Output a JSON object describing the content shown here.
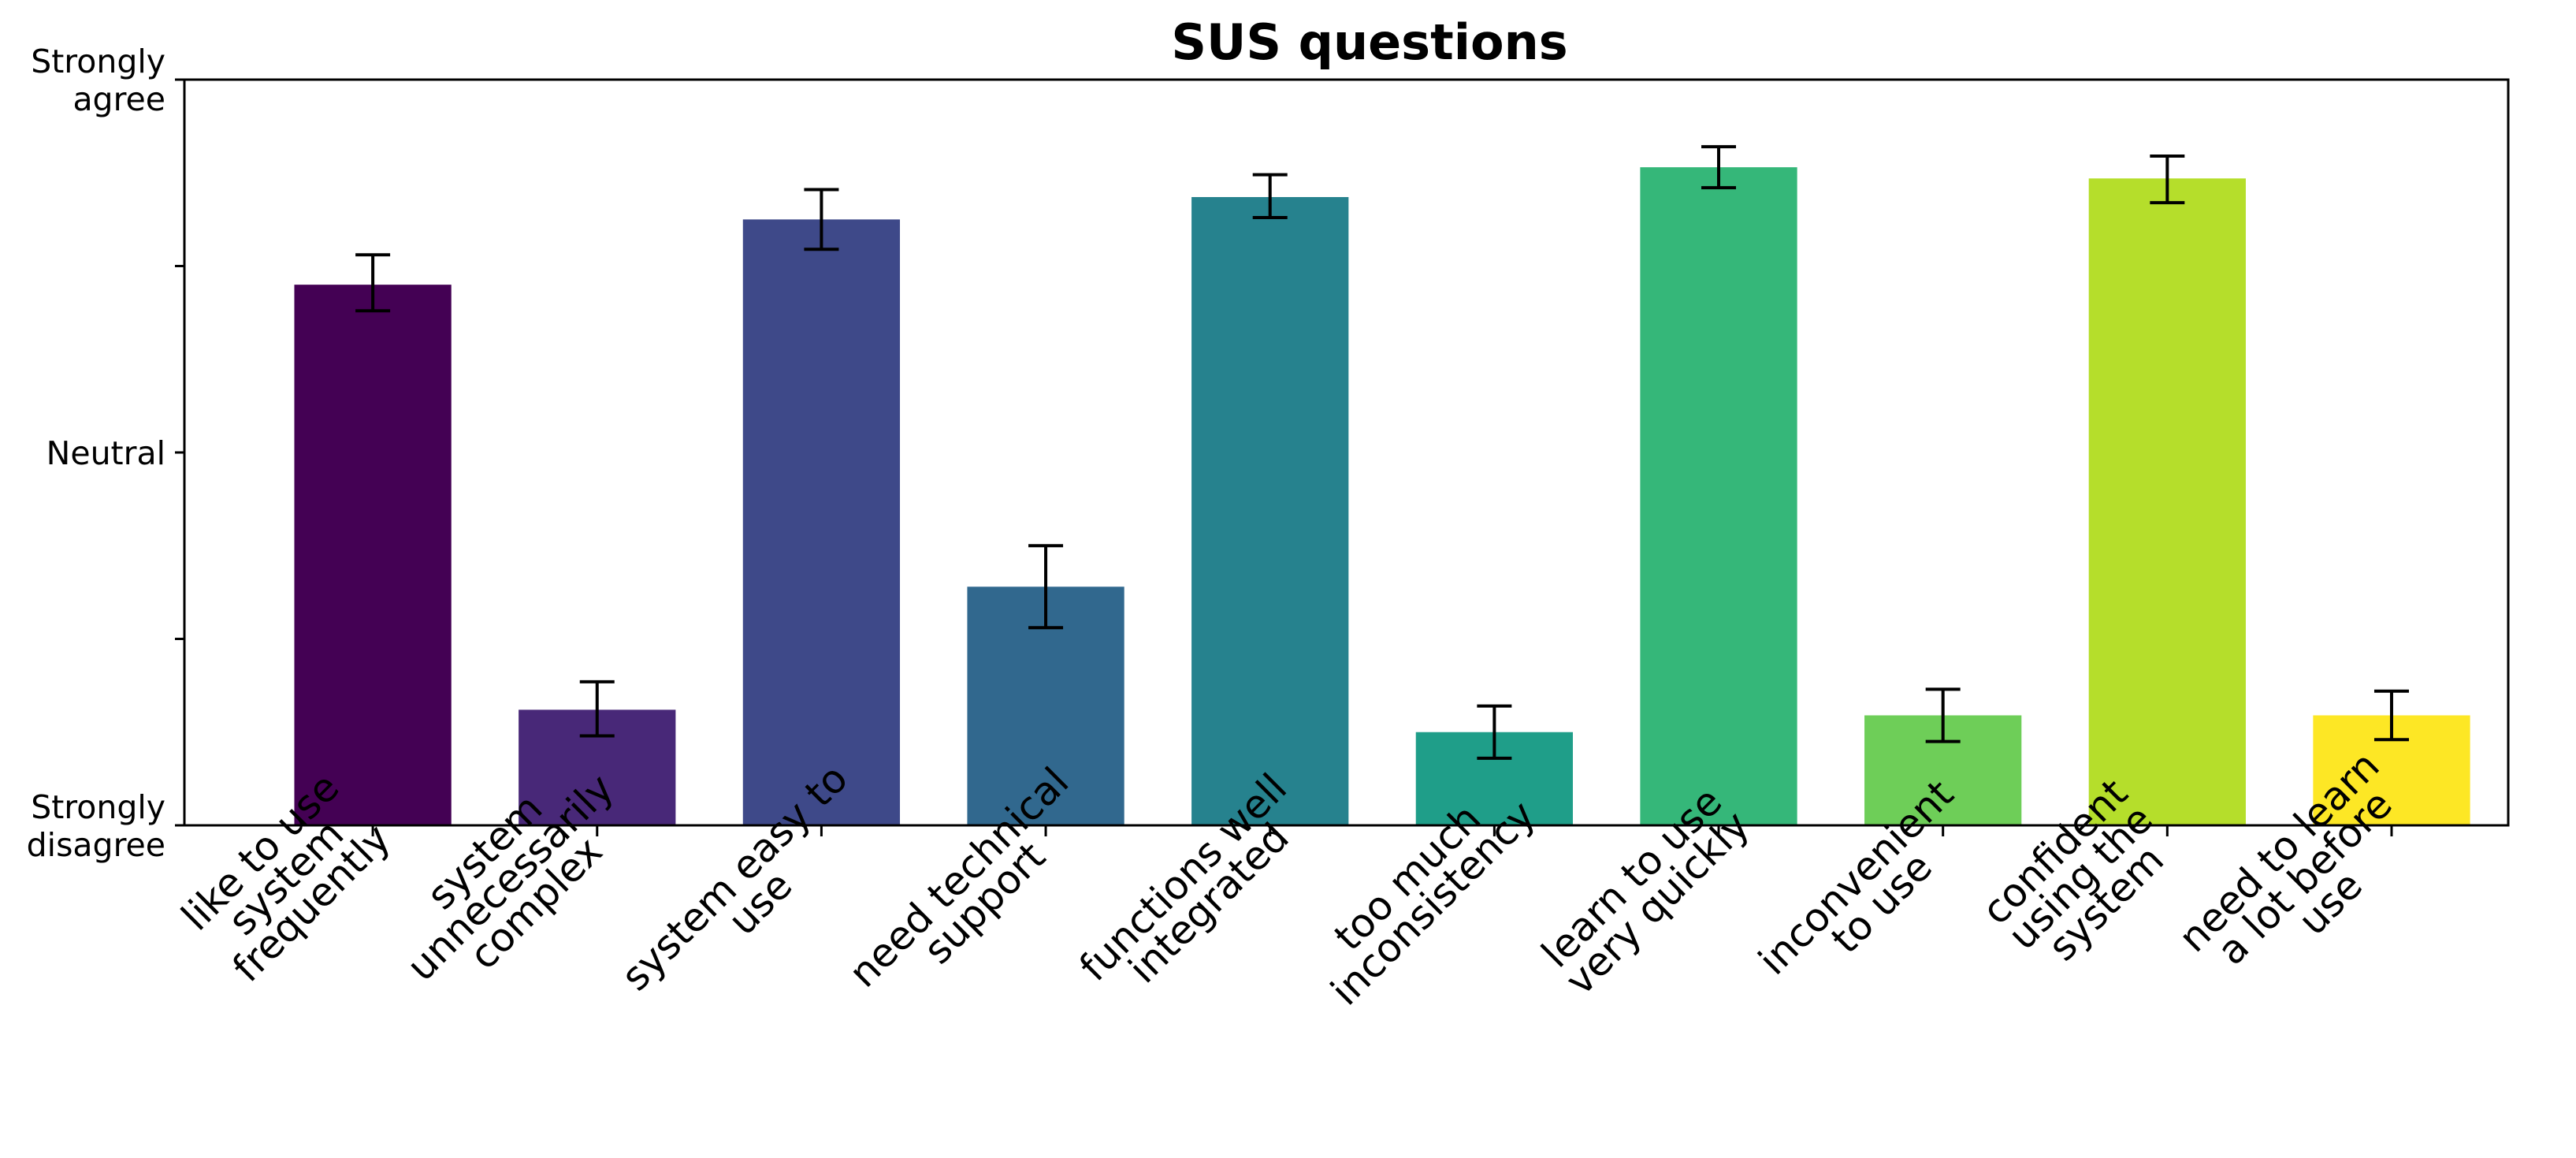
{
  "chart_data": {
    "type": "bar",
    "title": "SUS questions",
    "xlabel": "",
    "ylabel": "",
    "ylim": [
      1,
      5
    ],
    "yticks": [
      {
        "value": 5,
        "lines": [
          "Strongly",
          "agree"
        ]
      },
      {
        "value": 4,
        "lines": []
      },
      {
        "value": 3,
        "lines": [
          "Neutral"
        ]
      },
      {
        "value": 2,
        "lines": []
      },
      {
        "value": 1,
        "lines": [
          "Strongly",
          "disagree"
        ]
      }
    ],
    "x_tick_rotation_deg": 45,
    "grid": false,
    "legend": "none",
    "categories": [
      {
        "lines": [
          "like to use",
          "system",
          "frequently"
        ],
        "value": 3.9,
        "err_low": 3.76,
        "err_high": 4.06,
        "color": "#440154"
      },
      {
        "lines": [
          "system",
          "unnecessarily",
          "complex"
        ],
        "value": 1.62,
        "err_low": 1.48,
        "err_high": 1.77,
        "color": "#482878"
      },
      {
        "lines": [
          "system easy to",
          "use"
        ],
        "value": 4.25,
        "err_low": 4.09,
        "err_high": 4.41,
        "color": "#3e4989"
      },
      {
        "lines": [
          "need technical",
          "support"
        ],
        "value": 2.28,
        "err_low": 2.06,
        "err_high": 2.5,
        "color": "#31688e"
      },
      {
        "lines": [
          "functions well",
          "integrated"
        ],
        "value": 4.37,
        "err_low": 4.26,
        "err_high": 4.49,
        "color": "#26828e"
      },
      {
        "lines": [
          "too much",
          "inconsistency"
        ],
        "value": 1.5,
        "err_low": 1.36,
        "err_high": 1.64,
        "color": "#1f9e89"
      },
      {
        "lines": [
          "learn to use",
          "very quickly"
        ],
        "value": 4.53,
        "err_low": 4.42,
        "err_high": 4.64,
        "color": "#35b779"
      },
      {
        "lines": [
          "inconvenient",
          "to use"
        ],
        "value": 1.59,
        "err_low": 1.45,
        "err_high": 1.73,
        "color": "#6ece58"
      },
      {
        "lines": [
          "confident",
          "using the",
          "system"
        ],
        "value": 4.47,
        "err_low": 4.34,
        "err_high": 4.59,
        "color": "#b5de2b"
      },
      {
        "lines": [
          "need to learn",
          "a lot before",
          "use"
        ],
        "value": 1.59,
        "err_low": 1.46,
        "err_high": 1.72,
        "color": "#fde725"
      }
    ]
  }
}
